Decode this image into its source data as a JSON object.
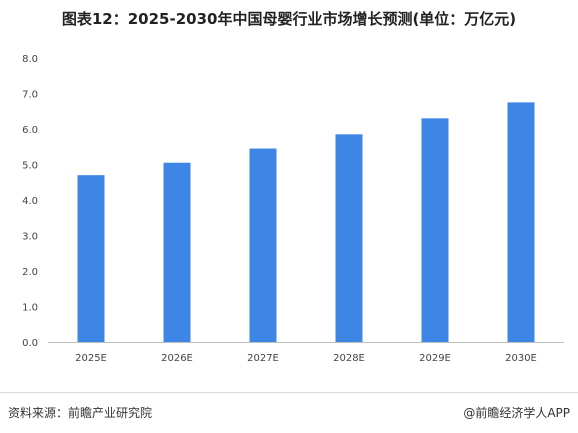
{
  "chart_data": {
    "type": "bar",
    "title": "图表12：2025-2030年中国母婴行业市场增长预测(单位：万亿元)",
    "categories": [
      "2025E",
      "2026E",
      "2027E",
      "2028E",
      "2029E",
      "2030E"
    ],
    "series": [
      {
        "values": [
          4.7,
          5.05,
          5.45,
          5.85,
          6.3,
          6.75
        ]
      }
    ],
    "ylim": [
      0,
      8
    ],
    "yticks": [
      "0.0",
      "1.0",
      "2.0",
      "3.0",
      "4.0",
      "5.0",
      "6.0",
      "7.0",
      "8.0"
    ],
    "grid": false,
    "bar_color": "#3d86e6"
  },
  "footer": {
    "source": "资料来源：前瞻产业研究院",
    "credit": "@前瞻经济学人APP"
  }
}
